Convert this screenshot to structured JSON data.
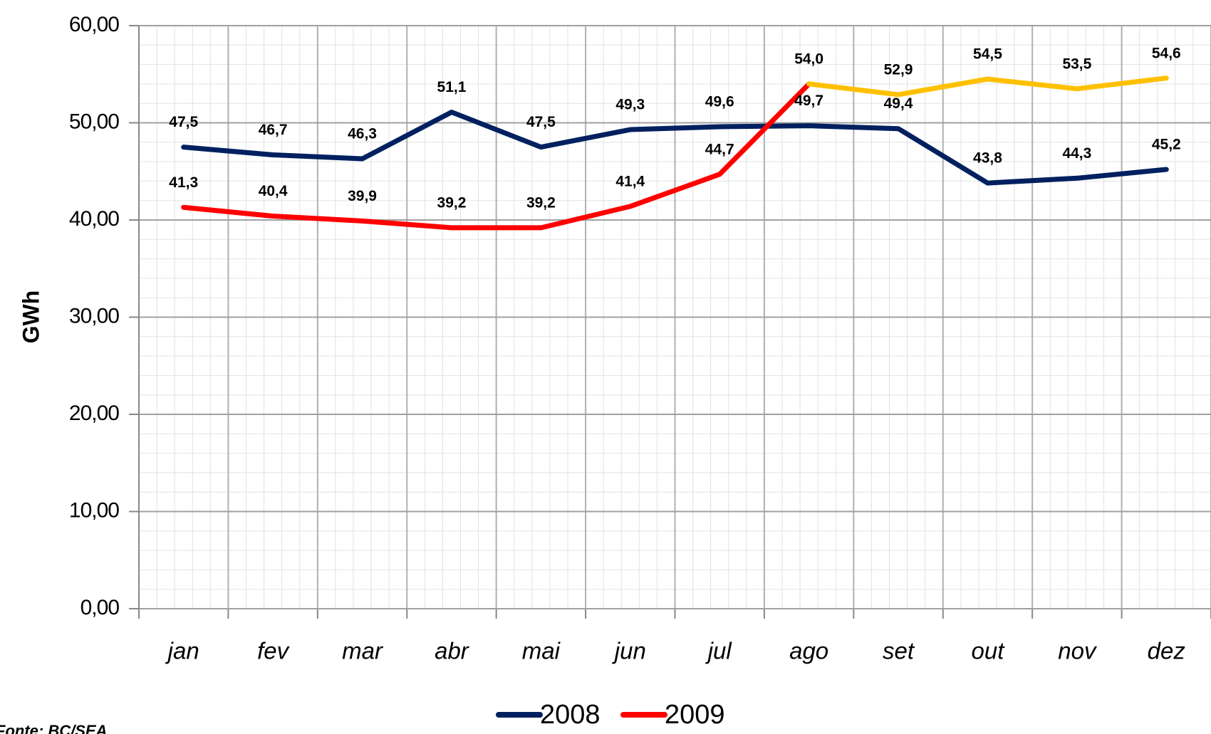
{
  "chart_data": {
    "type": "line",
    "y_label": "GWh",
    "source": "Fonte: BC/SEA",
    "categories": [
      "jan",
      "fev",
      "mar",
      "abr",
      "mai",
      "jun",
      "jul",
      "ago",
      "set",
      "out",
      "nov",
      "dez"
    ],
    "series": [
      {
        "name": "2008",
        "color": "#002060",
        "values": [
          47.5,
          46.7,
          46.3,
          51.1,
          47.5,
          49.3,
          49.6,
          49.7,
          49.4,
          43.8,
          44.3,
          45.2
        ],
        "value_labels": [
          "47,5",
          "46,7",
          "46,3",
          "51,1",
          "47,5",
          "49,3",
          "49,6",
          "49,7",
          "49,4",
          "43,8",
          "44,3",
          "45,2"
        ]
      },
      {
        "name": "2009",
        "color": "#ff0000",
        "values": [
          41.3,
          40.4,
          39.9,
          39.2,
          39.2,
          41.4,
          44.7,
          54.0,
          52.9,
          54.5,
          53.5,
          54.6
        ],
        "value_labels": [
          "41,3",
          "40,4",
          "39,9",
          "39,2",
          "39,2",
          "41,4",
          "44,7",
          "54,0",
          "52,9",
          "54,5",
          "53,5",
          "54,6"
        ],
        "continuation": {
          "from": "ago",
          "color": "#ffc000"
        }
      }
    ],
    "ylim": [
      0,
      60
    ],
    "yticks": [
      {
        "value": 0,
        "label": "0,00"
      },
      {
        "value": 10,
        "label": "10,00"
      },
      {
        "value": 20,
        "label": "20,00"
      },
      {
        "value": 30,
        "label": "30,00"
      },
      {
        "value": 40,
        "label": "40,00"
      },
      {
        "value": 50,
        "label": "50,00"
      },
      {
        "value": 60,
        "label": "60,00"
      }
    ],
    "grid": true,
    "minor_grid": true,
    "legend": "bottom"
  }
}
